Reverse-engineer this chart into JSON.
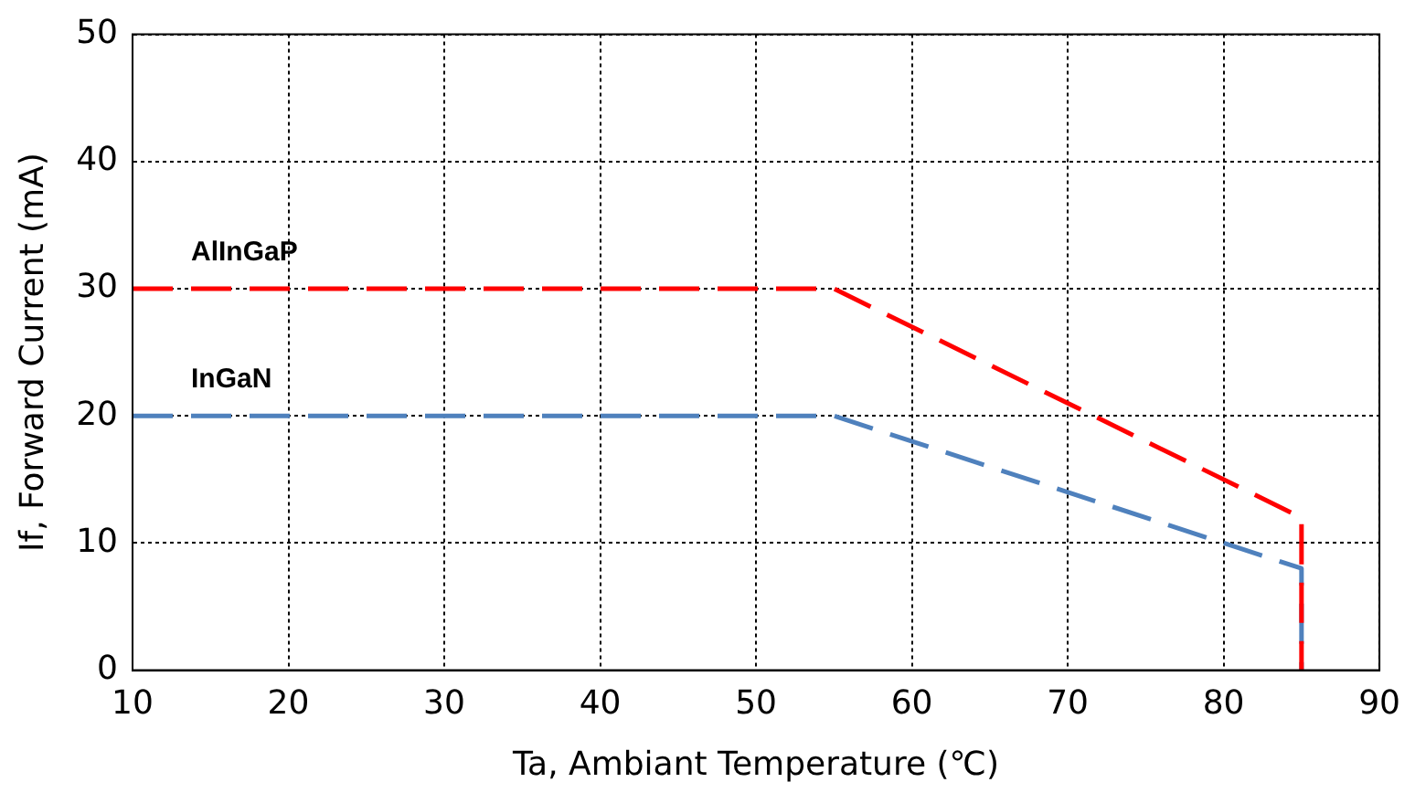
{
  "chart_data": {
    "type": "line",
    "xlabel": "Ta, Ambiant Temperature (℃)",
    "ylabel": "If, Forward Current (mA)",
    "xlim": [
      10,
      90
    ],
    "xticks": [
      10,
      20,
      30,
      40,
      50,
      60,
      70,
      80,
      90
    ],
    "ylim": [
      0,
      50
    ],
    "yticks": [
      0,
      10,
      20,
      30,
      40,
      50
    ],
    "grid": true,
    "legend": false,
    "marker": "none",
    "line_style": "dashed",
    "series": [
      {
        "name": "AlInGaP",
        "color": "#ff0000",
        "x": [
          10,
          55,
          85,
          85
        ],
        "values": [
          30,
          30,
          12,
          0
        ]
      },
      {
        "name": "InGaN",
        "color": "#4f81bd",
        "x": [
          10,
          55,
          85,
          85
        ],
        "values": [
          20,
          20,
          8,
          0
        ]
      }
    ]
  }
}
